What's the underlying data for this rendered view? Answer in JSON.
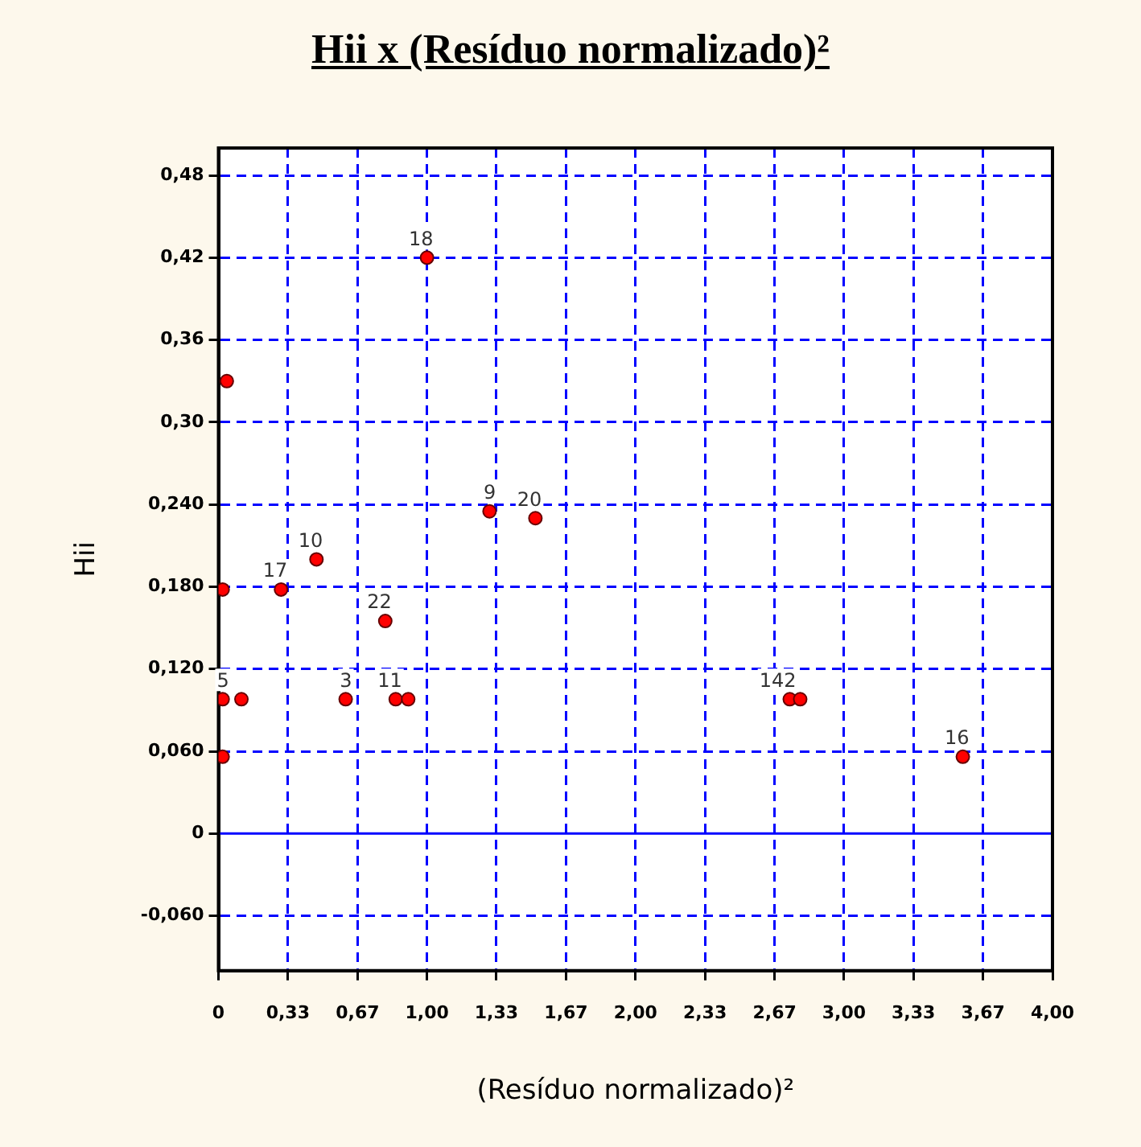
{
  "chart_data": {
    "type": "scatter",
    "title": "Hii x (Resíduo normalizado)²",
    "xlabel": "(Resíduo normalizado)²",
    "ylabel": "Hii",
    "series": [
      {
        "color": "#ff0000",
        "x": [
          1.0,
          0.04,
          1.3,
          1.52,
          0.47,
          0.3,
          0.02,
          0.8,
          0.61,
          0.85,
          0.91,
          0.02,
          0.09,
          0.11,
          0.02,
          2.74,
          2.79,
          3.57
        ],
        "values": [
          0.42,
          0.33,
          0.235,
          0.23,
          0.2,
          0.178,
          0.178,
          0.155,
          0.098,
          0.098,
          0.098,
          0.098,
          null,
          0.098,
          0.056,
          0.098,
          0.098,
          0.056
        ]
      }
    ],
    "xlim": [
      0,
      4
    ],
    "xticks": [
      0,
      {
        "value": 0.333,
        "label": "0,33"
      },
      {
        "value": 0.667,
        "label": "0,67"
      },
      {
        "value": 1,
        "label": "1,00"
      },
      {
        "value": 1.333,
        "label": "1,33"
      },
      {
        "value": 1.667,
        "label": "1,67"
      },
      {
        "value": 2,
        "label": "2,00"
      },
      {
        "value": 2.333,
        "label": "2,33"
      },
      {
        "value": 2.667,
        "label": "2,67"
      },
      {
        "value": 3,
        "label": "3,00"
      },
      {
        "value": 3.333,
        "label": "3,33"
      },
      {
        "value": 3.667,
        "label": "3,67"
      },
      {
        "value": 4,
        "label": "4,00"
      }
    ],
    "ylim": [
      -0.1,
      0.5
    ],
    "yticks": [
      {
        "value": -0.06,
        "label": "-0,060"
      },
      0,
      {
        "value": 0.06,
        "label": "0,060"
      },
      {
        "value": 0.12,
        "label": "0,120"
      },
      {
        "value": 0.18,
        "label": "0,180"
      },
      {
        "value": 0.24,
        "label": "0,240"
      },
      {
        "value": 0.3,
        "label": "0,30"
      },
      {
        "value": 0.36,
        "label": "0,36"
      },
      {
        "value": 0.42,
        "label": "0,42"
      },
      {
        "value": 0.48,
        "label": "0,48"
      }
    ],
    "ref_lines": [
      {
        "axis": "y",
        "value": 0,
        "color": "#0000ff"
      }
    ],
    "annotations": [
      {
        "text": "18",
        "x": 1.0,
        "y": 0.42
      },
      {
        "text": "9",
        "x": 1.3,
        "y": 0.235
      },
      {
        "text": "20",
        "x": 1.52,
        "y": 0.23
      },
      {
        "text": "10",
        "x": 0.47,
        "y": 0.2
      },
      {
        "text": "17",
        "x": 0.3,
        "y": 0.178
      },
      {
        "text": "22",
        "x": 0.8,
        "y": 0.155
      },
      {
        "text": "3",
        "x": 0.61,
        "y": 0.098
      },
      {
        "text": "11",
        "x": 0.85,
        "y": 0.098
      },
      {
        "text": "5",
        "x": 0.02,
        "y": 0.098
      },
      {
        "text": "142",
        "x": 2.74,
        "y": 0.098
      },
      {
        "text": "16",
        "x": 3.57,
        "y": 0.056
      }
    ],
    "grid": true,
    "legend": false,
    "marker": "circle"
  }
}
